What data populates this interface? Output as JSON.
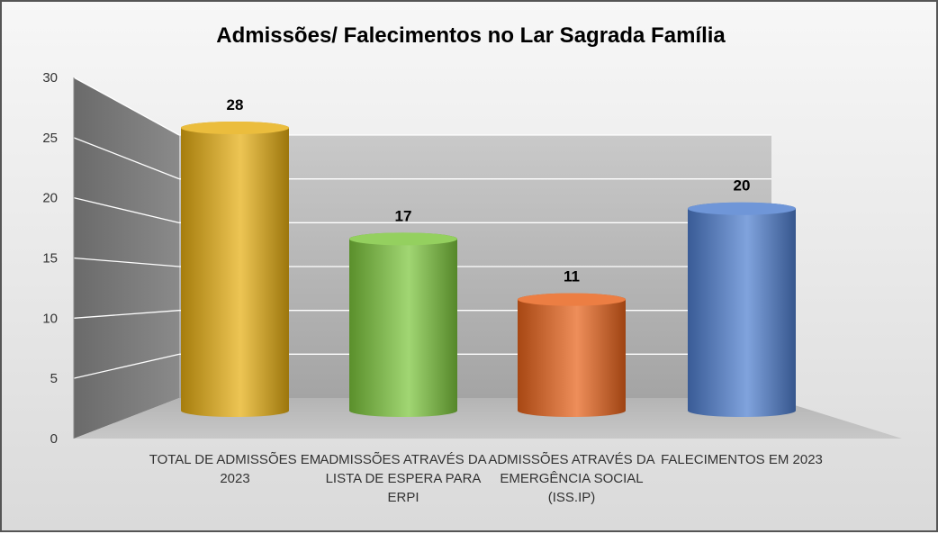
{
  "chart_data": {
    "type": "bar",
    "style": "3d-cylinder",
    "title": "Admissões/ Falecimentos no Lar Sagrada Família",
    "xlabel": "",
    "ylabel": "",
    "categories": [
      [
        "TOTAL DE ADMISSÕES EM",
        "2023"
      ],
      [
        "ADMISSÕES ATRAVÉS DA",
        "LISTA DE ESPERA PARA",
        "ERPI"
      ],
      [
        "ADMISSÕES ATRAVÉS DA",
        "EMERGÊNCIA SOCIAL",
        "(ISS.IP)"
      ],
      [
        "FALECIMENTOS EM 2023"
      ]
    ],
    "values": [
      28,
      17,
      11,
      20
    ],
    "data_labels": [
      "28",
      "17",
      "11",
      "20"
    ],
    "ylim": [
      0,
      30
    ],
    "yticks": [
      "0",
      "5",
      "10",
      "15",
      "20",
      "25",
      "30"
    ],
    "grid": true,
    "legend": "none",
    "colors": [
      "#E6AE12",
      "#7DC63C",
      "#E8621A",
      "#4F7FD0"
    ]
  }
}
